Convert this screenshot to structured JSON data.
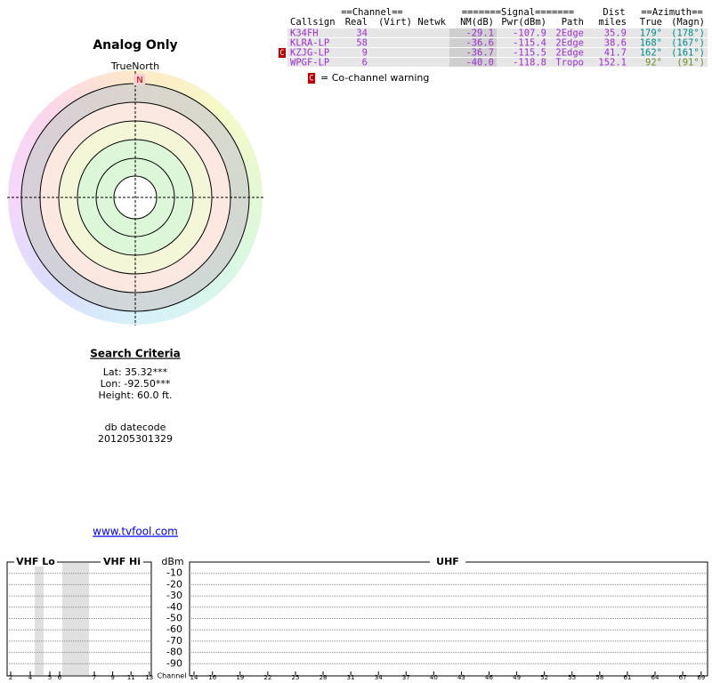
{
  "title": "Analog Only",
  "compass": {
    "label": "TrueNorth",
    "north": "N"
  },
  "table": {
    "group_headers": [
      "==Channel==",
      "=======Signal=======",
      "Dist",
      "==Azimuth=="
    ],
    "headers": [
      "Callsign",
      "Real",
      "(Virt)",
      "Netwk",
      "NM(dB)",
      "Pwr(dBm)",
      "Path",
      "miles",
      "True",
      "(Magn)"
    ],
    "rows": [
      {
        "cells": [
          "K34FH",
          "34",
          "",
          "",
          "-29.1",
          "-107.9",
          "2Edge",
          "35.9",
          "179°",
          "(178°)"
        ],
        "azimuth_color": "#008b8b"
      },
      {
        "cells": [
          "KLRA-LP",
          "58",
          "",
          "",
          "-36.6",
          "-115.4",
          "2Edge",
          "38.6",
          "168°",
          "(167°)"
        ],
        "azimuth_color": "#008b8b"
      },
      {
        "cells": [
          "KZJG-LP",
          "9",
          "",
          "",
          "-36.7",
          "-115.5",
          "2Edge",
          "41.7",
          "162°",
          "(161°)"
        ],
        "azimuth_color": "#008b8b",
        "warning": "C"
      },
      {
        "cells": [
          "WPGF-LP",
          "6",
          "",
          "",
          "-40.0",
          "-118.8",
          "Tropo",
          "152.1",
          "92°",
          "(91°)"
        ],
        "azimuth_color": "#6b8e23"
      }
    ],
    "legend": {
      "mark": "C",
      "text": "= Co-channel warning"
    }
  },
  "search_criteria": {
    "title": "Search Criteria",
    "lat": "Lat: 35.32***",
    "lon": "Lon: -92.50***",
    "height": "Height: 60.0 ft."
  },
  "datecode": {
    "label": "db datecode",
    "value": "201205301329"
  },
  "link": "www.tvfool.com",
  "spectrum": {
    "vhf_lo": "VHF Lo",
    "vhf_hi": "VHF Hi",
    "uhf": "UHF",
    "unit": "dBm",
    "channel_label": "Channel",
    "ylim": [
      -100,
      0
    ],
    "yticks": [
      -10,
      -20,
      -30,
      -40,
      -50,
      -60,
      -70,
      -80,
      -90
    ],
    "vhf_lo_channels": [
      2,
      4,
      5,
      6
    ],
    "vhf_hi_channels": [
      7,
      9,
      11,
      13
    ],
    "uhf_channels": [
      14,
      16,
      19,
      22,
      25,
      28,
      31,
      34,
      37,
      40,
      43,
      46,
      49,
      52,
      55,
      58,
      61,
      64,
      67,
      69
    ]
  }
}
